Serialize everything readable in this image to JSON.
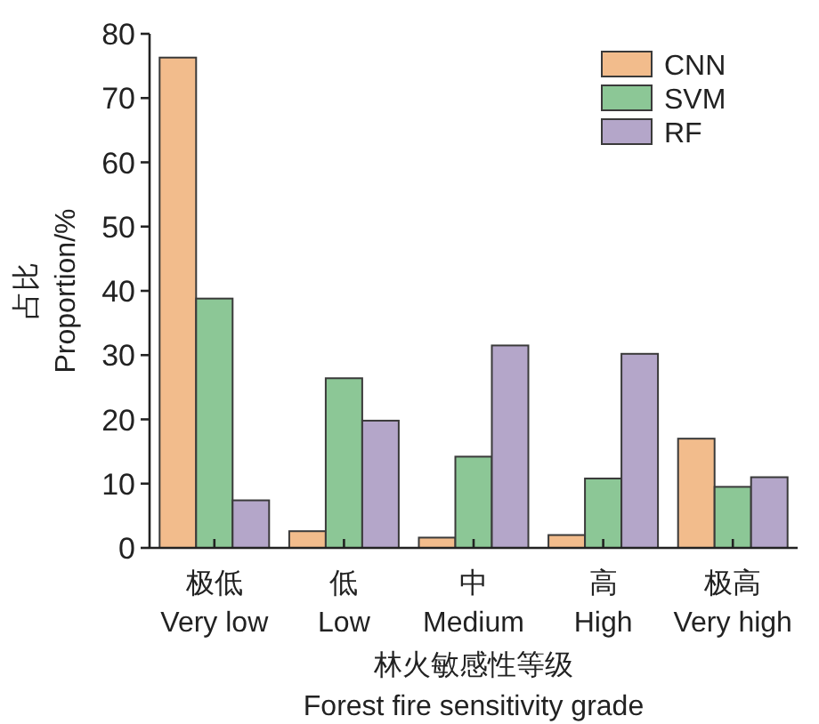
{
  "chart_data": {
    "type": "bar",
    "categories": [
      "极低\nVery low",
      "低\nLow",
      "中\nMedium",
      "高\nHigh",
      "极高\nVery high"
    ],
    "series": [
      {
        "name": "CNN",
        "color": "#f2bc8c",
        "values": [
          76.3,
          2.6,
          1.6,
          2.0,
          17.0
        ]
      },
      {
        "name": "SVM",
        "color": "#8cc796",
        "values": [
          38.8,
          26.4,
          14.2,
          10.8,
          9.5
        ]
      },
      {
        "name": "RF",
        "color": "#b4a6c9",
        "values": [
          7.4,
          19.8,
          31.5,
          30.2,
          11.0
        ]
      }
    ],
    "xlabel": "林火敏感性等级\nForest fire sensitivity grade",
    "ylabel": "占比\nProportion/%",
    "ylim": [
      0,
      80
    ],
    "yticks": [
      0,
      10,
      20,
      30,
      40,
      50,
      60,
      70,
      80
    ],
    "legend": "top right"
  }
}
